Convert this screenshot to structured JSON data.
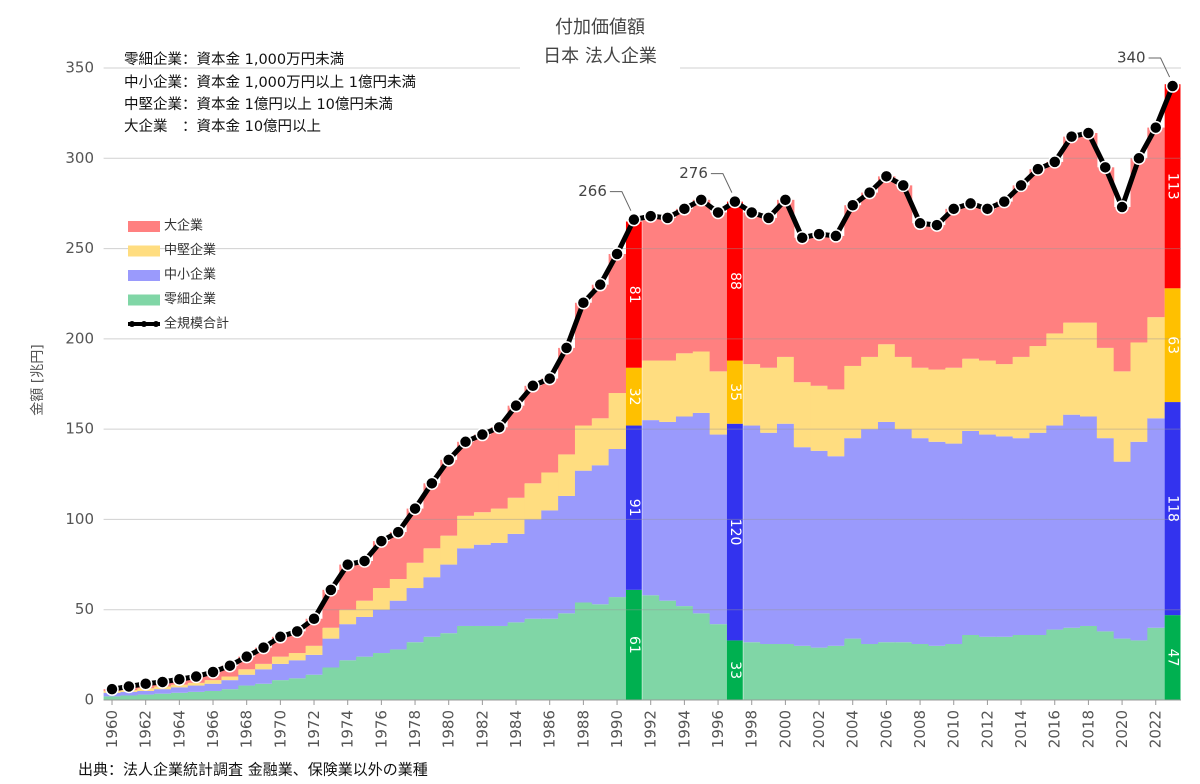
{
  "chart_data": {
    "type": "stacked_step_area",
    "title": "付加価値額",
    "subtitle": "日本 法人企業",
    "ylabel": "金額 [兆円]",
    "source": "出典：法人企業統計調査 金融業、保険業以外の業種",
    "notes": [
      "零細企業：資本金 1,000万円未満",
      "中小企業：資本金 1,000万円以上 1億円未満",
      "中堅企業：資本金 1億円以上 10億円未満",
      "大企業　：資本金 10億円以上"
    ],
    "x": [
      1960,
      1961,
      1962,
      1963,
      1964,
      1965,
      1966,
      1967,
      1968,
      1969,
      1970,
      1971,
      1972,
      1973,
      1974,
      1975,
      1976,
      1977,
      1978,
      1979,
      1980,
      1981,
      1982,
      1983,
      1984,
      1985,
      1986,
      1987,
      1988,
      1989,
      1990,
      1991,
      1992,
      1993,
      1994,
      1995,
      1996,
      1997,
      1998,
      1999,
      2000,
      2001,
      2002,
      2003,
      2004,
      2005,
      2006,
      2007,
      2008,
      2009,
      2010,
      2011,
      2012,
      2013,
      2014,
      2015,
      2016,
      2017,
      2018,
      2019,
      2020,
      2021,
      2022,
      2023
    ],
    "xlim": [
      1959.5,
      2023.5
    ],
    "xticks": [
      1960,
      1962,
      1964,
      1966,
      1968,
      1970,
      1972,
      1974,
      1976,
      1978,
      1980,
      1982,
      1984,
      1986,
      1988,
      1990,
      1992,
      1994,
      1996,
      1998,
      2000,
      2002,
      2004,
      2006,
      2008,
      2010,
      2012,
      2014,
      2016,
      2018,
      2020,
      2022
    ],
    "ylim": [
      0,
      350
    ],
    "yticks": [
      0,
      50,
      100,
      150,
      200,
      250,
      300,
      350
    ],
    "grid": true,
    "legend": "upper left",
    "highlighted_x": [
      1991,
      1997,
      2023
    ],
    "series": [
      {
        "name": "零細企業",
        "color": "#80d6a6",
        "highlight_color": "#00b050",
        "values": [
          2,
          2.5,
          3,
          3.5,
          4,
          4.5,
          5,
          6,
          8,
          9,
          11,
          12,
          14,
          18,
          22,
          24,
          26,
          28,
          32,
          35,
          37,
          41,
          41,
          41,
          43,
          45,
          45,
          48,
          54,
          53,
          57,
          61,
          58,
          55,
          52,
          48,
          42,
          33,
          32,
          31,
          31,
          30,
          29,
          30,
          34,
          31,
          32,
          32,
          31,
          30,
          31,
          36,
          35,
          35,
          36,
          36,
          39,
          40,
          41,
          38,
          34,
          33,
          40,
          47
        ]
      },
      {
        "name": "中小企業",
        "color": "#9a9afc",
        "highlight_color": "#3333ee",
        "values": [
          2,
          2,
          2,
          2.5,
          3,
          3.5,
          4,
          5,
          6,
          8,
          9,
          10,
          11,
          16,
          20,
          22,
          24,
          27,
          30,
          33,
          38,
          43,
          45,
          46,
          49,
          55,
          60,
          65,
          73,
          77,
          82,
          91,
          97,
          99,
          105,
          111,
          105,
          120,
          120,
          117,
          122,
          110,
          109,
          105,
          111,
          119,
          122,
          118,
          114,
          113,
          111,
          113,
          112,
          111,
          109,
          112,
          113,
          118,
          116,
          107,
          98,
          110,
          116,
          118
        ]
      },
      {
        "name": "中堅企業",
        "color": "#ffdd80",
        "highlight_color": "#ffc000",
        "values": [
          1,
          1,
          1.5,
          1.5,
          1.5,
          1.5,
          2,
          2,
          3,
          3,
          4,
          4,
          5,
          6,
          8,
          9,
          12,
          12,
          14,
          16,
          16,
          18,
          18,
          19,
          20,
          20,
          21,
          23,
          25,
          26,
          31,
          32,
          33,
          34,
          35,
          34,
          35,
          35,
          34,
          36,
          37,
          36,
          36,
          37,
          40,
          40,
          43,
          40,
          39,
          40,
          42,
          40,
          41,
          40,
          45,
          48,
          51,
          51,
          52,
          50,
          50,
          55,
          56,
          63
        ]
      },
      {
        "name": "大企業",
        "color": "#ff8080",
        "highlight_color": "#ff0000",
        "values": [
          1,
          2,
          2.5,
          2.5,
          3,
          3.5,
          4.5,
          6,
          7,
          9,
          11,
          12,
          15,
          21,
          25,
          22,
          26,
          26,
          30,
          36,
          42,
          41,
          43,
          45,
          51,
          54,
          52,
          59,
          68,
          74,
          77,
          81,
          80,
          79,
          80,
          84,
          88,
          88,
          84,
          83,
          87,
          80,
          84,
          85,
          89,
          91,
          93,
          95,
          80,
          80,
          88,
          86,
          84,
          90,
          95,
          98,
          95,
          103,
          105,
          100,
          91,
          102,
          105,
          113
        ]
      },
      {
        "name": "全規模合計",
        "color": "#000000",
        "kind": "line",
        "values": [
          6,
          7.5,
          9,
          10,
          11.5,
          13,
          15.5,
          19,
          24,
          29,
          35,
          38,
          45,
          61,
          75,
          77,
          88,
          93,
          106,
          120,
          133,
          143,
          147,
          151,
          163,
          174,
          178,
          195,
          220,
          230,
          247,
          266,
          268,
          267,
          272,
          277,
          270,
          276,
          270,
          267,
          277,
          256,
          258,
          257,
          274,
          281,
          290,
          285,
          264,
          263,
          272,
          275,
          272,
          276,
          285,
          294,
          298,
          312,
          314,
          295,
          273,
          300,
          317,
          340
        ]
      }
    ]
  }
}
